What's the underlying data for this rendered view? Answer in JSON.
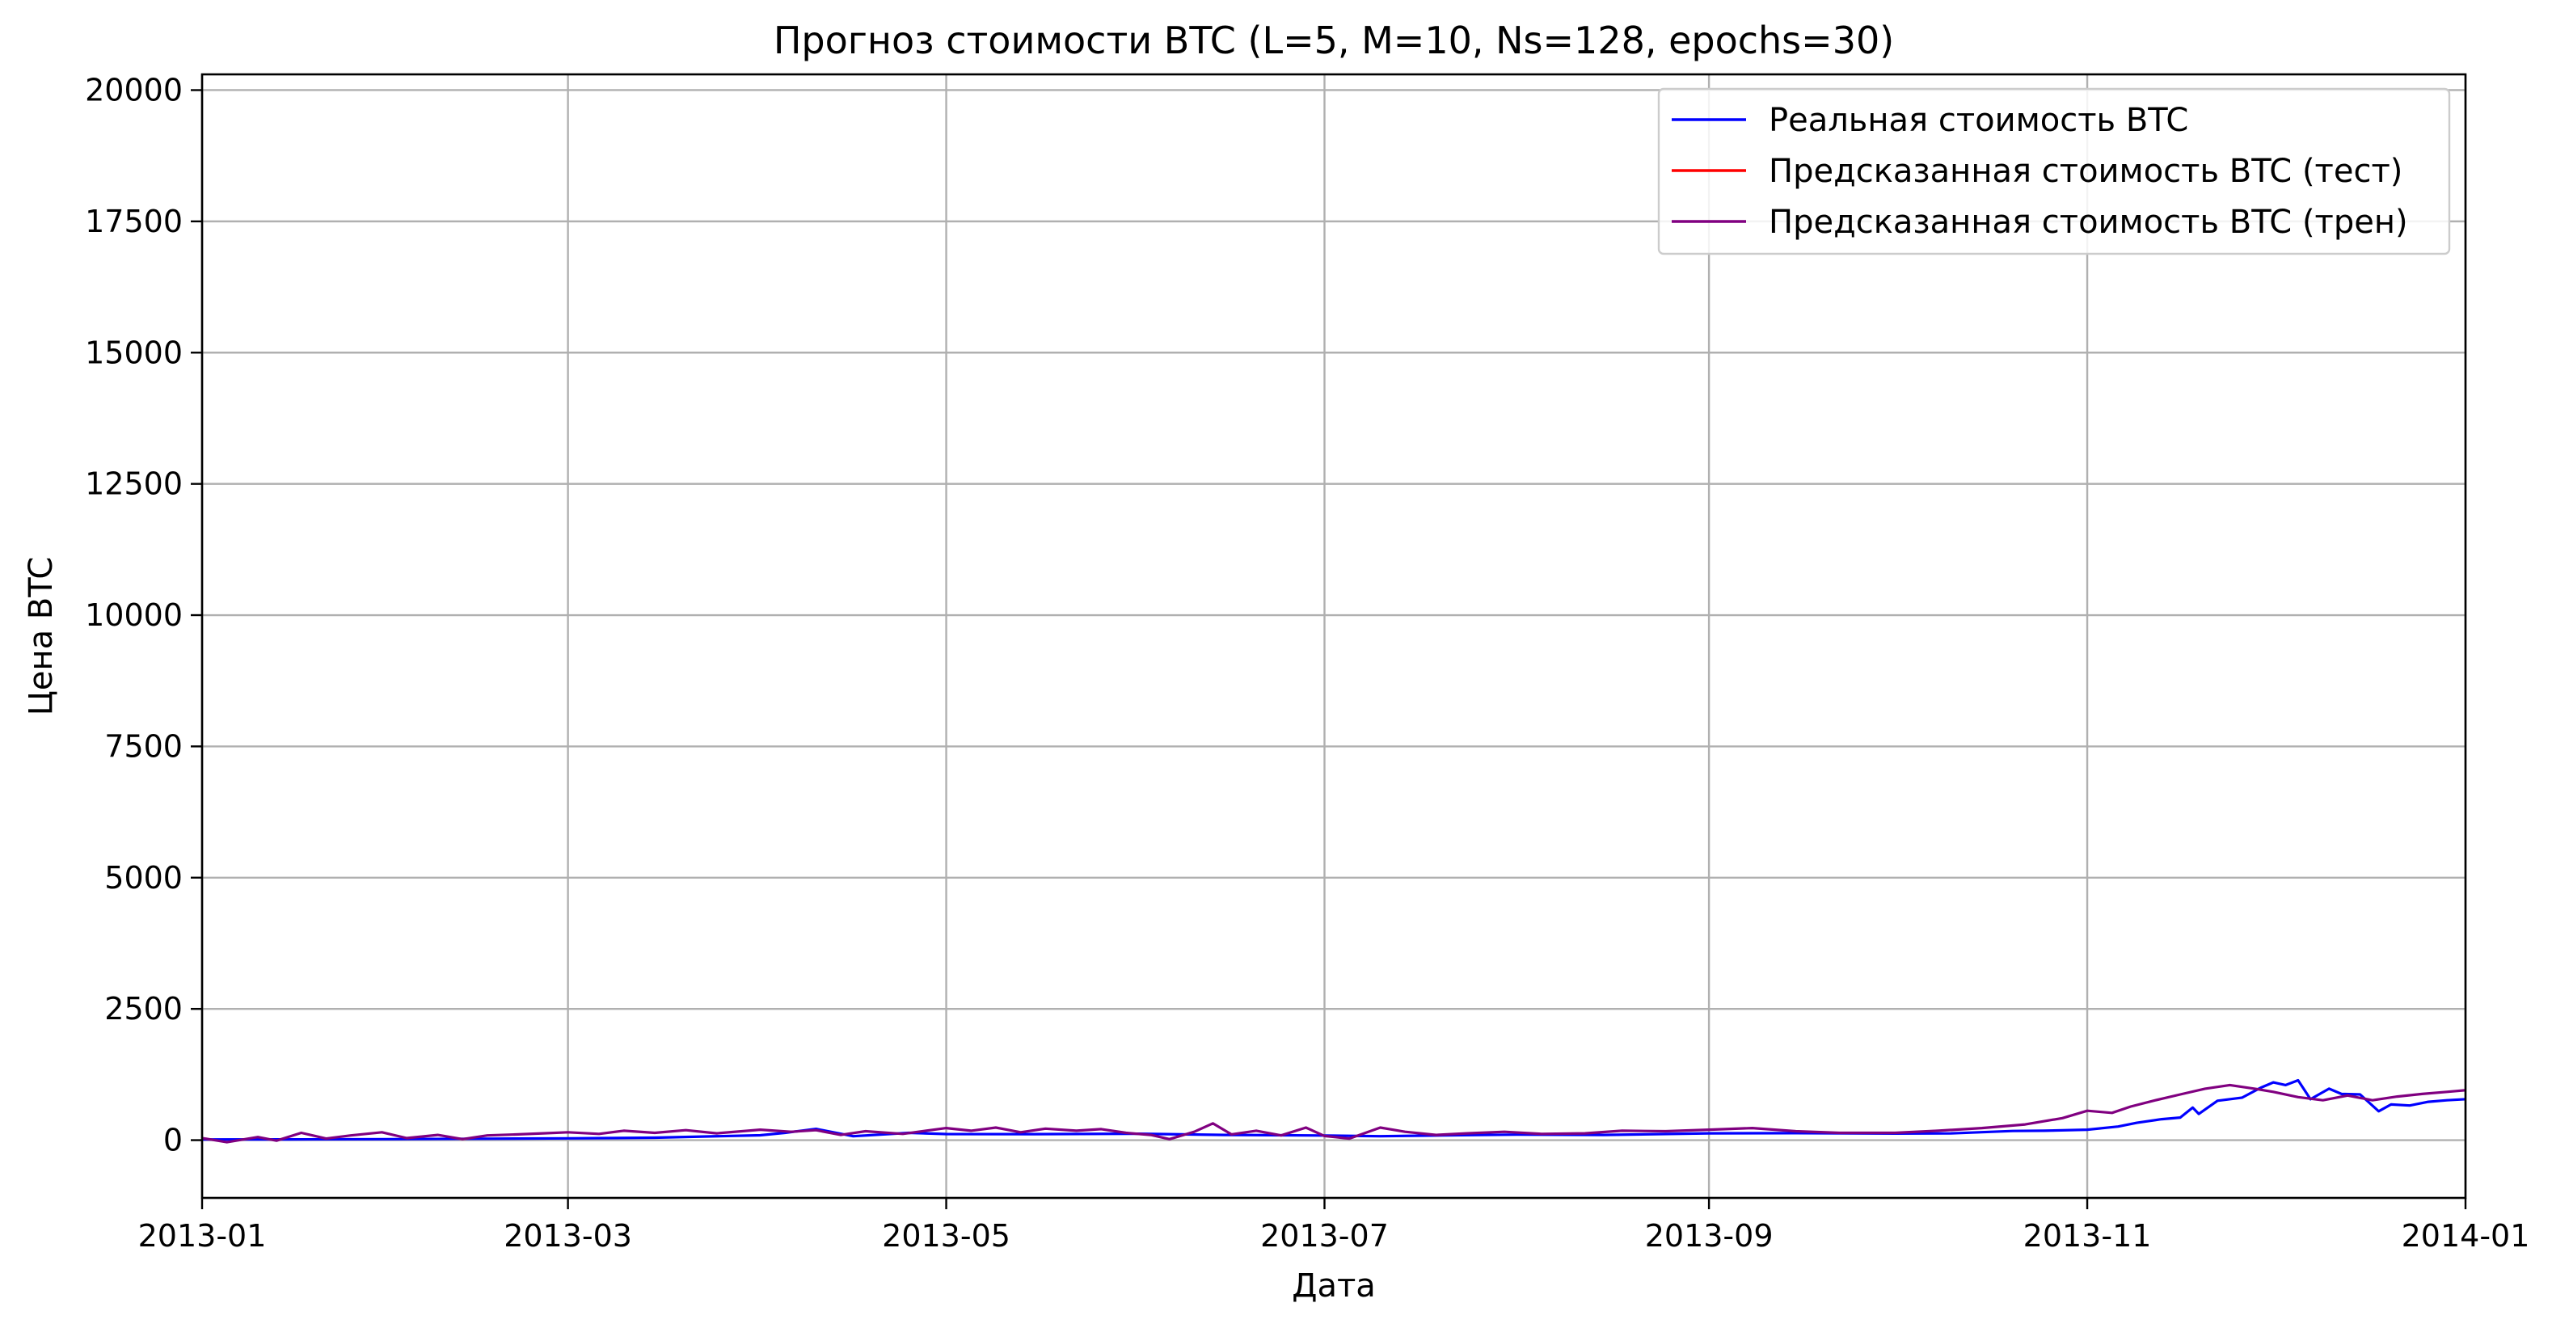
{
  "chart_data": {
    "type": "line",
    "title": "Прогноз стоимости BTC (L=5, M=10, Ns=128, epochs=30)",
    "xlabel": "Дата",
    "ylabel": "Цена BTC",
    "xlim": [
      "2013-01-01",
      "2014-01-01"
    ],
    "ylim": [
      -1100,
      20300
    ],
    "x_ticks": [
      "2013-01",
      "2013-03",
      "2013-05",
      "2013-07",
      "2013-09",
      "2013-11",
      "2014-01"
    ],
    "y_ticks": [
      0,
      2500,
      5000,
      7500,
      10000,
      12500,
      15000,
      17500,
      20000
    ],
    "grid": true,
    "legend_position": "top-right",
    "series": [
      {
        "name": "Реальная стоимость BTC",
        "color": "#0000ff",
        "points": [
          [
            "2013-01-01",
            13
          ],
          [
            "2013-01-15",
            15
          ],
          [
            "2013-02-01",
            20
          ],
          [
            "2013-02-15",
            27
          ],
          [
            "2013-03-01",
            34
          ],
          [
            "2013-03-15",
            47
          ],
          [
            "2013-04-01",
            93
          ],
          [
            "2013-04-05",
            140
          ],
          [
            "2013-04-10",
            215
          ],
          [
            "2013-04-16",
            75
          ],
          [
            "2013-04-25",
            140
          ],
          [
            "2013-05-01",
            117
          ],
          [
            "2013-05-15",
            115
          ],
          [
            "2013-06-01",
            123
          ],
          [
            "2013-06-15",
            100
          ],
          [
            "2013-07-01",
            88
          ],
          [
            "2013-07-10",
            75
          ],
          [
            "2013-07-20",
            90
          ],
          [
            "2013-08-01",
            105
          ],
          [
            "2013-08-15",
            100
          ],
          [
            "2013-09-01",
            130
          ],
          [
            "2013-09-15",
            133
          ],
          [
            "2013-10-01",
            125
          ],
          [
            "2013-10-10",
            128
          ],
          [
            "2013-10-20",
            175
          ],
          [
            "2013-10-25",
            180
          ],
          [
            "2013-11-01",
            200
          ],
          [
            "2013-11-06",
            260
          ],
          [
            "2013-11-09",
            330
          ],
          [
            "2013-11-13",
            400
          ],
          [
            "2013-11-16",
            430
          ],
          [
            "2013-11-18",
            620
          ],
          [
            "2013-11-19",
            500
          ],
          [
            "2013-11-22",
            750
          ],
          [
            "2013-11-26",
            810
          ],
          [
            "2013-11-29",
            1000
          ],
          [
            "2013-12-01",
            1100
          ],
          [
            "2013-12-03",
            1050
          ],
          [
            "2013-12-05",
            1140
          ],
          [
            "2013-12-07",
            780
          ],
          [
            "2013-12-10",
            980
          ],
          [
            "2013-12-12",
            880
          ],
          [
            "2013-12-15",
            870
          ],
          [
            "2013-12-18",
            550
          ],
          [
            "2013-12-20",
            680
          ],
          [
            "2013-12-23",
            660
          ],
          [
            "2013-12-26",
            730
          ],
          [
            "2013-12-29",
            760
          ],
          [
            "2014-01-01",
            780
          ]
        ]
      },
      {
        "name": "Предсказанная стоимость BTC (тест)",
        "color": "#ff0000",
        "points": []
      },
      {
        "name": "Предсказанная стоимость BTC (трен)",
        "color": "#800080",
        "points": [
          [
            "2013-01-01",
            40
          ],
          [
            "2013-01-05",
            -40
          ],
          [
            "2013-01-10",
            60
          ],
          [
            "2013-01-13",
            -10
          ],
          [
            "2013-01-17",
            140
          ],
          [
            "2013-01-21",
            30
          ],
          [
            "2013-01-25",
            90
          ],
          [
            "2013-01-30",
            150
          ],
          [
            "2013-02-03",
            40
          ],
          [
            "2013-02-08",
            100
          ],
          [
            "2013-02-12",
            20
          ],
          [
            "2013-02-16",
            90
          ],
          [
            "2013-02-21",
            110
          ],
          [
            "2013-02-25",
            130
          ],
          [
            "2013-03-01",
            150
          ],
          [
            "2013-03-06",
            120
          ],
          [
            "2013-03-10",
            180
          ],
          [
            "2013-03-15",
            140
          ],
          [
            "2013-03-20",
            190
          ],
          [
            "2013-03-25",
            130
          ],
          [
            "2013-04-01",
            200
          ],
          [
            "2013-04-06",
            160
          ],
          [
            "2013-04-10",
            190
          ],
          [
            "2013-04-14",
            100
          ],
          [
            "2013-04-18",
            170
          ],
          [
            "2013-04-24",
            120
          ],
          [
            "2013-05-01",
            230
          ],
          [
            "2013-05-05",
            180
          ],
          [
            "2013-05-09",
            240
          ],
          [
            "2013-05-13",
            150
          ],
          [
            "2013-05-17",
            220
          ],
          [
            "2013-05-22",
            180
          ],
          [
            "2013-05-26",
            210
          ],
          [
            "2013-05-30",
            140
          ],
          [
            "2013-06-03",
            100
          ],
          [
            "2013-06-06",
            20
          ],
          [
            "2013-06-10",
            160
          ],
          [
            "2013-06-13",
            320
          ],
          [
            "2013-06-16",
            110
          ],
          [
            "2013-06-20",
            180
          ],
          [
            "2013-06-24",
            90
          ],
          [
            "2013-06-28",
            240
          ],
          [
            "2013-07-01",
            80
          ],
          [
            "2013-07-05",
            30
          ],
          [
            "2013-07-10",
            240
          ],
          [
            "2013-07-14",
            160
          ],
          [
            "2013-07-19",
            100
          ],
          [
            "2013-07-24",
            130
          ],
          [
            "2013-07-30",
            160
          ],
          [
            "2013-08-05",
            120
          ],
          [
            "2013-08-12",
            130
          ],
          [
            "2013-08-18",
            180
          ],
          [
            "2013-08-25",
            170
          ],
          [
            "2013-09-01",
            200
          ],
          [
            "2013-09-08",
            230
          ],
          [
            "2013-09-15",
            170
          ],
          [
            "2013-09-22",
            140
          ],
          [
            "2013-10-01",
            140
          ],
          [
            "2013-10-08",
            180
          ],
          [
            "2013-10-15",
            230
          ],
          [
            "2013-10-22",
            300
          ],
          [
            "2013-10-28",
            420
          ],
          [
            "2013-11-01",
            560
          ],
          [
            "2013-11-05",
            520
          ],
          [
            "2013-11-08",
            640
          ],
          [
            "2013-11-12",
            760
          ],
          [
            "2013-11-16",
            870
          ],
          [
            "2013-11-20",
            980
          ],
          [
            "2013-11-24",
            1050
          ],
          [
            "2013-11-28",
            980
          ],
          [
            "2013-12-01",
            920
          ],
          [
            "2013-12-05",
            820
          ],
          [
            "2013-12-09",
            760
          ],
          [
            "2013-12-13",
            850
          ],
          [
            "2013-12-17",
            760
          ],
          [
            "2013-12-21",
            830
          ],
          [
            "2013-12-25",
            880
          ],
          [
            "2013-12-29",
            920
          ],
          [
            "2014-01-01",
            950
          ]
        ]
      }
    ]
  }
}
